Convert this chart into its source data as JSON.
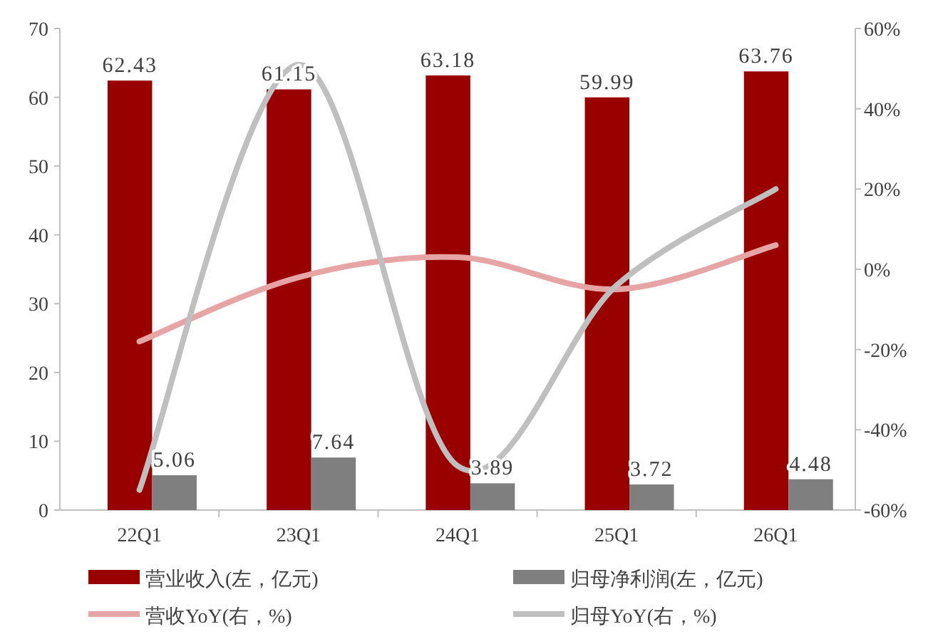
{
  "chart_data": {
    "type": "bar",
    "categories": [
      "22Q1",
      "23Q1",
      "24Q1",
      "25Q1",
      "26Q1"
    ],
    "series": [
      {
        "name": "营业收入(左，亿元)",
        "color": "#990000",
        "values": [
          62.43,
          61.15,
          63.18,
          59.99,
          63.76
        ],
        "value_labels": [
          "62.43",
          "61.15",
          "63.18",
          "59.99",
          "63.76"
        ]
      },
      {
        "name": "归母净利润(左，亿元)",
        "color": "#7f7f7f",
        "values": [
          5.06,
          7.64,
          3.89,
          3.72,
          4.48
        ],
        "value_labels": [
          "5.06",
          "7.64",
          "3.89",
          "3.72",
          "4.48"
        ]
      },
      {
        "type": "line",
        "axis": "y2",
        "name": "营收YoY(右，%)",
        "color": "#e6a4a4",
        "values": [
          -18,
          -2,
          3,
          -5,
          6
        ]
      },
      {
        "type": "line",
        "axis": "y2",
        "name": "归母YoY(右，%)",
        "color": "#bfbfbf",
        "values": [
          -55,
          51,
          -49,
          -4,
          20
        ]
      }
    ],
    "ylim": [
      0,
      70
    ],
    "yticks": [
      0,
      10,
      20,
      30,
      40,
      50,
      60,
      70
    ],
    "y2lim": [
      -60,
      60
    ],
    "y2ticks": [
      {
        "value": -60,
        "label": "-60%"
      },
      {
        "value": -40,
        "label": "-40%"
      },
      {
        "value": -20,
        "label": "-20%"
      },
      {
        "value": 0,
        "label": "0%"
      },
      {
        "value": 20,
        "label": "20%"
      },
      {
        "value": 40,
        "label": "40%"
      },
      {
        "value": 60,
        "label": "60%"
      }
    ],
    "legend": "bottom",
    "grid": false
  }
}
